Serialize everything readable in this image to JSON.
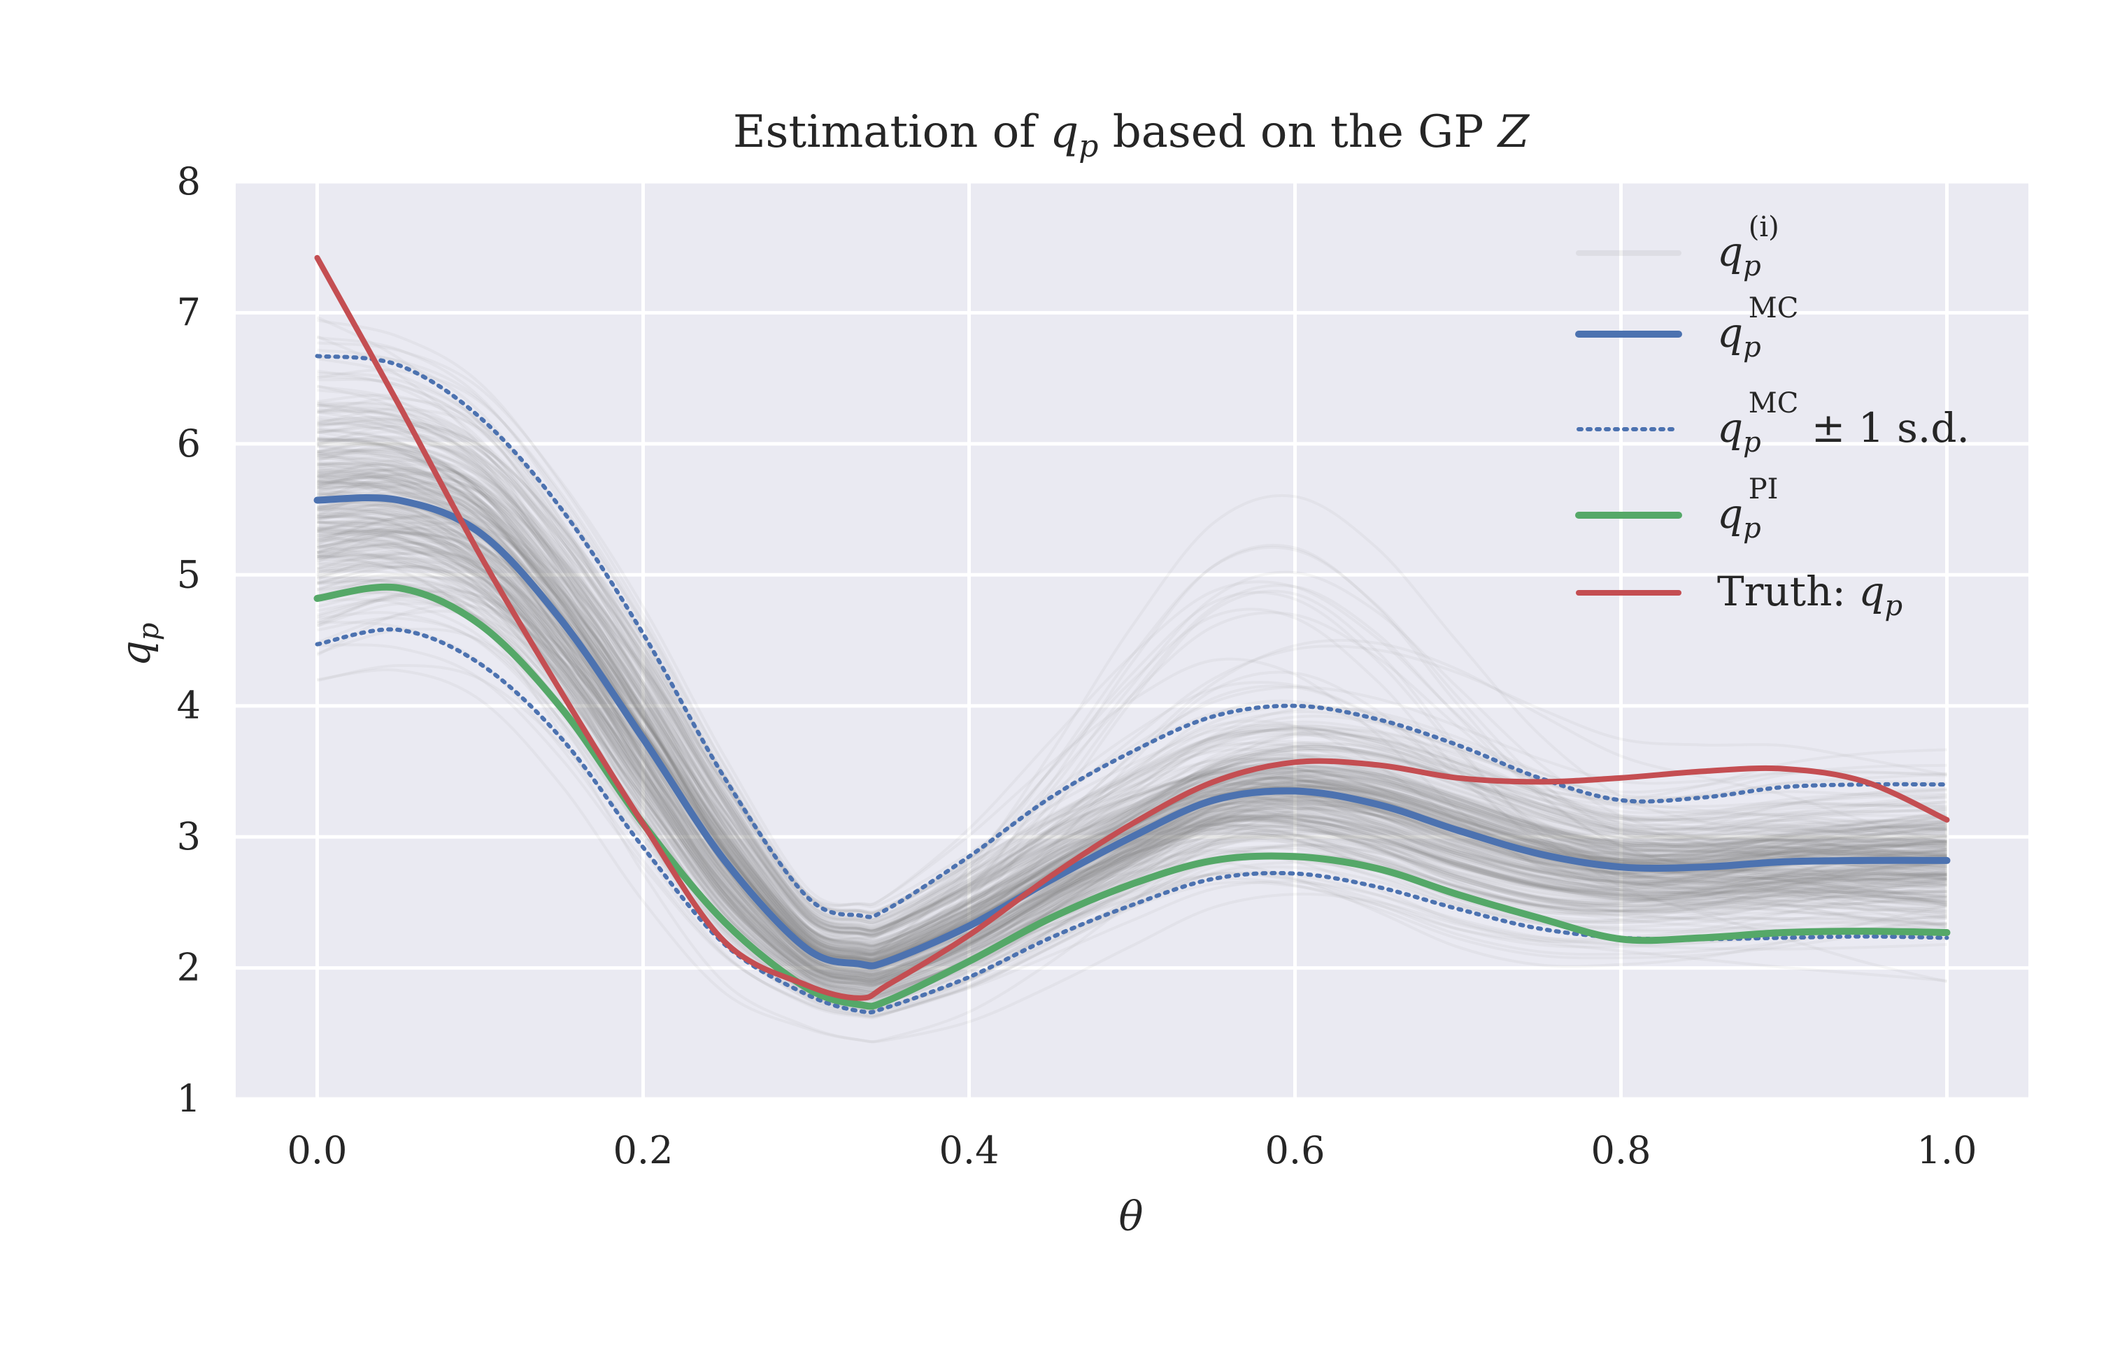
{
  "chart_data": {
    "type": "line",
    "title": {
      "prefix": "Estimation of ",
      "symbol": "q",
      "symbol_sub": "p",
      "suffix": " based on the GP ",
      "suffix_symbol": "Z"
    },
    "xlabel": "θ",
    "ylabel": {
      "symbol": "q",
      "sub": "p"
    },
    "xlim": [
      -0.05,
      1.05
    ],
    "ylim": [
      1,
      8
    ],
    "x_ticks": [
      0.0,
      0.2,
      0.4,
      0.6,
      0.8,
      1.0
    ],
    "x_tick_labels": [
      "0.0",
      "0.2",
      "0.4",
      "0.6",
      "0.8",
      "1.0"
    ],
    "y_ticks": [
      1,
      2,
      3,
      4,
      5,
      6,
      7,
      8
    ],
    "y_tick_labels": [
      "1",
      "2",
      "3",
      "4",
      "5",
      "6",
      "7",
      "8"
    ],
    "grid": true,
    "legend_position": "top-right",
    "legend": [
      {
        "key": "samples",
        "label": "q",
        "sub": "p",
        "sup": "(i)",
        "after": "",
        "style": "thin-gray"
      },
      {
        "key": "mc",
        "label": "q",
        "sub": "p",
        "sup": "MC",
        "after": "",
        "style": "solid"
      },
      {
        "key": "mc_sd",
        "label": "q",
        "sub": "p",
        "sup": "MC",
        "after": " ± 1 s.d.",
        "style": "dotted"
      },
      {
        "key": "pi",
        "label": "q",
        "sub": "p",
        "sup": "PI",
        "after": "",
        "style": "solid"
      },
      {
        "key": "truth",
        "label": "Truth: q",
        "sub": "p",
        "sup": "",
        "after": "",
        "style": "solid"
      }
    ],
    "colors": {
      "background": "#eaeaf2",
      "grid": "#ffffff",
      "samples": "#808080",
      "mc": "#4c72b0",
      "pi": "#55a868",
      "truth": "#c44e52"
    },
    "x": [
      0.0,
      0.05,
      0.1,
      0.15,
      0.2,
      0.25,
      0.3,
      0.333,
      0.35,
      0.4,
      0.45,
      0.5,
      0.55,
      0.6,
      0.65,
      0.7,
      0.75,
      0.8,
      0.85,
      0.9,
      0.95,
      1.0
    ],
    "series": [
      {
        "key": "mc",
        "values": [
          5.57,
          5.57,
          5.32,
          4.65,
          3.75,
          2.82,
          2.15,
          2.03,
          2.05,
          2.32,
          2.67,
          3.0,
          3.28,
          3.35,
          3.25,
          3.05,
          2.87,
          2.77,
          2.77,
          2.81,
          2.82,
          2.82
        ]
      },
      {
        "key": "mc_upper",
        "values": [
          6.67,
          6.6,
          6.2,
          5.5,
          4.55,
          3.45,
          2.55,
          2.4,
          2.45,
          2.85,
          3.3,
          3.65,
          3.92,
          4.0,
          3.9,
          3.7,
          3.45,
          3.28,
          3.3,
          3.38,
          3.4,
          3.4
        ]
      },
      {
        "key": "mc_lower",
        "values": [
          4.47,
          4.58,
          4.32,
          3.75,
          2.92,
          2.18,
          1.8,
          1.67,
          1.7,
          1.93,
          2.23,
          2.48,
          2.68,
          2.72,
          2.62,
          2.45,
          2.3,
          2.23,
          2.22,
          2.23,
          2.24,
          2.23
        ]
      },
      {
        "key": "pi",
        "values": [
          4.82,
          4.9,
          4.62,
          3.98,
          3.1,
          2.35,
          1.85,
          1.72,
          1.75,
          2.05,
          2.38,
          2.64,
          2.82,
          2.85,
          2.76,
          2.56,
          2.38,
          2.22,
          2.23,
          2.27,
          2.28,
          2.27
        ]
      },
      {
        "key": "truth",
        "values": [
          7.42,
          6.3,
          5.15,
          4.1,
          3.1,
          2.2,
          1.87,
          1.77,
          1.87,
          2.25,
          2.7,
          3.1,
          3.42,
          3.57,
          3.55,
          3.45,
          3.42,
          3.45,
          3.5,
          3.52,
          3.42,
          3.13
        ]
      }
    ],
    "sample_curves_note_count": 300
  }
}
